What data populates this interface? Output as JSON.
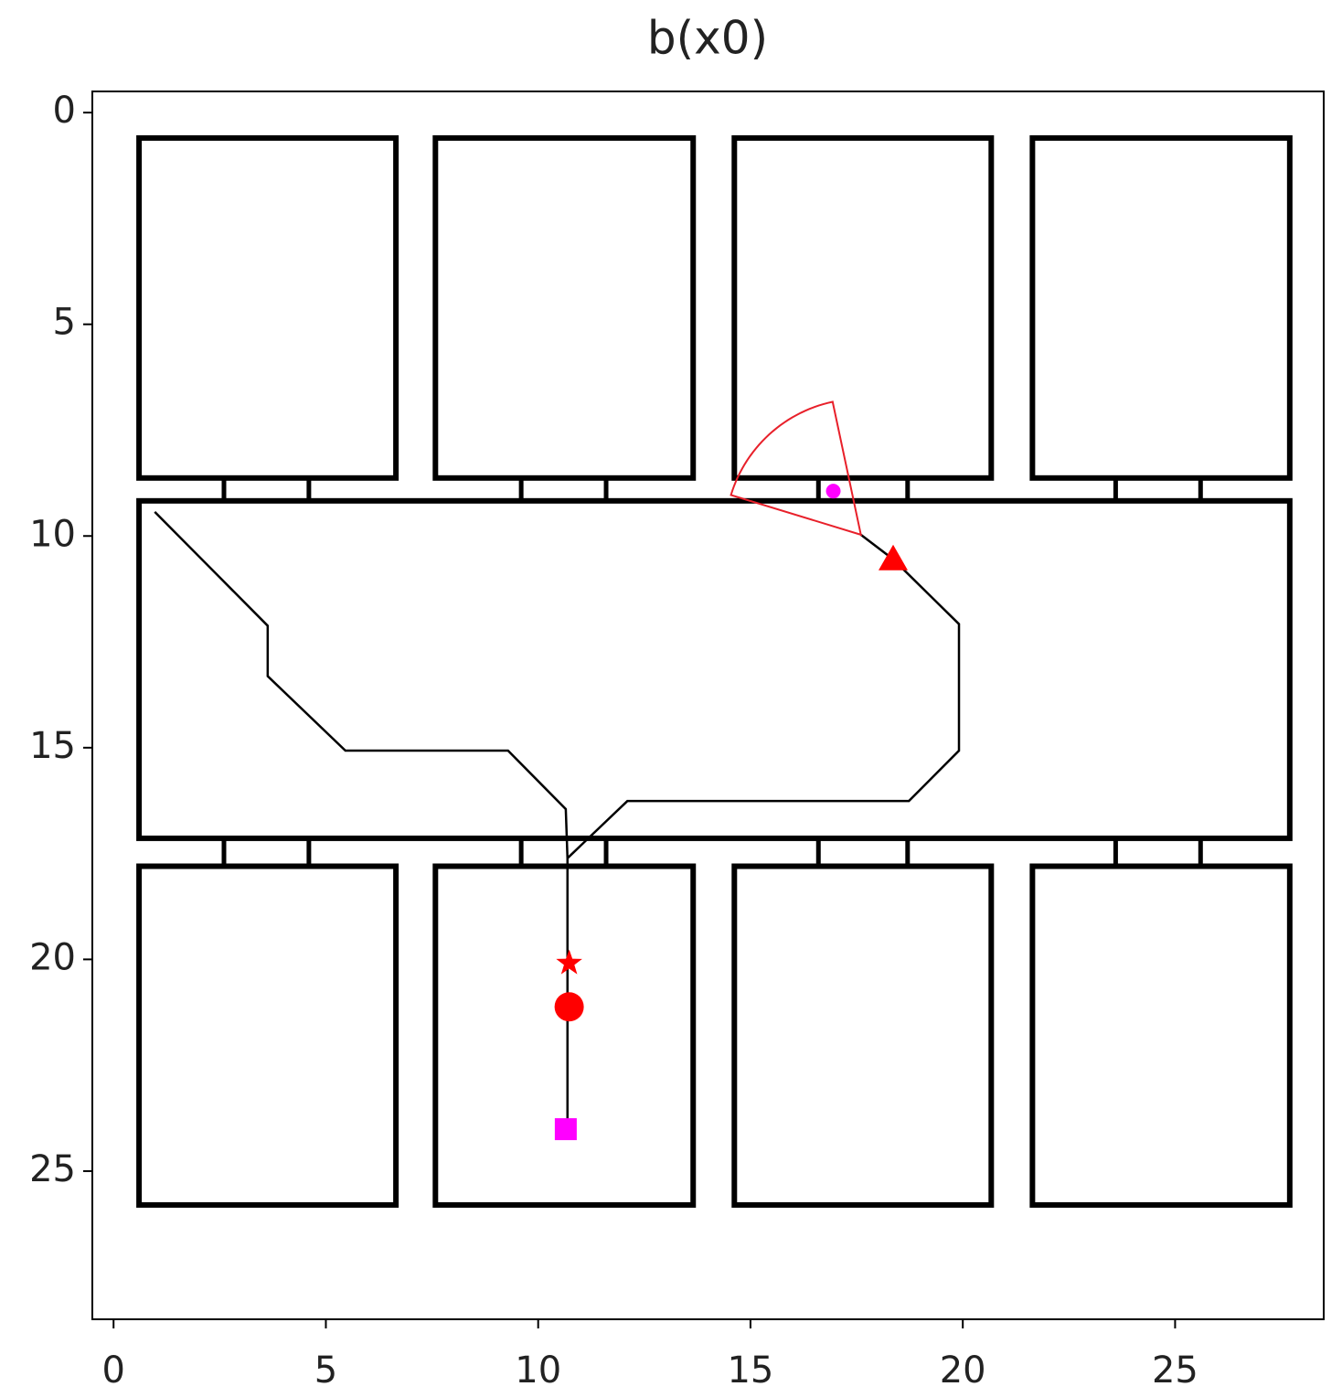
{
  "chart_data": {
    "type": "map",
    "title": "b(x0)",
    "xlim": [
      -0.5,
      28.5
    ],
    "ylim": [
      28.5,
      -0.5
    ],
    "xticks": [
      0,
      5,
      10,
      15,
      20,
      25
    ],
    "yticks": [
      0,
      5,
      10,
      15,
      20,
      25
    ],
    "wall_color": "#000000",
    "rooms": [
      [
        0.6,
        0.6,
        6.65,
        8.63
      ],
      [
        7.58,
        0.6,
        13.65,
        8.63
      ],
      [
        14.62,
        0.6,
        20.67,
        8.63
      ],
      [
        21.64,
        0.6,
        27.7,
        8.63
      ],
      [
        0.6,
        9.17,
        27.7,
        17.14
      ],
      [
        0.6,
        17.8,
        6.65,
        25.8
      ],
      [
        7.58,
        17.8,
        13.65,
        25.8
      ],
      [
        14.62,
        17.8,
        20.67,
        25.8
      ],
      [
        21.64,
        17.8,
        27.7,
        25.8
      ]
    ],
    "doors": [
      [
        2.6,
        8.63,
        4.6,
        9.17
      ],
      [
        9.6,
        8.63,
        11.6,
        9.17
      ],
      [
        16.6,
        8.63,
        18.7,
        9.17
      ],
      [
        23.6,
        8.63,
        25.6,
        9.17
      ],
      [
        2.6,
        17.14,
        4.6,
        17.8
      ],
      [
        9.6,
        17.14,
        11.6,
        17.8
      ],
      [
        16.6,
        17.14,
        18.7,
        17.8
      ],
      [
        23.6,
        17.14,
        25.6,
        17.8
      ]
    ],
    "paths": [
      {
        "color": "#000000",
        "x": [
          0.97,
          3.63,
          3.63,
          5.46,
          9.29,
          10.65,
          10.69
        ],
        "y": [
          9.43,
          12.12,
          13.31,
          15.07,
          15.07,
          16.45,
          17.61
        ]
      },
      {
        "color": "#000000",
        "x": [
          10.69,
          10.69,
          12.1,
          18.73,
          19.91,
          19.91,
          18.36,
          17.6
        ],
        "y": [
          24.01,
          17.61,
          16.26,
          16.26,
          15.07,
          12.08,
          10.55,
          9.97
        ]
      }
    ],
    "sector": {
      "color": "#e8202a",
      "center": [
        17.6,
        9.97
      ],
      "radius": 3.2,
      "theta": [
        -163,
        -102
      ]
    },
    "markers": [
      {
        "shape": "star",
        "color": "#ff0000",
        "x": 10.73,
        "y": 20.09
      },
      {
        "shape": "circle",
        "color": "#ff0000",
        "x": 10.73,
        "y": 21.12
      },
      {
        "shape": "square",
        "color": "#ff00ff",
        "x": 10.65,
        "y": 24.01
      },
      {
        "shape": "triangle",
        "color": "#ff0000",
        "x": 18.36,
        "y": 10.55
      },
      {
        "shape": "dot",
        "color": "#ff00ff",
        "x": 16.95,
        "y": 8.94
      }
    ]
  }
}
